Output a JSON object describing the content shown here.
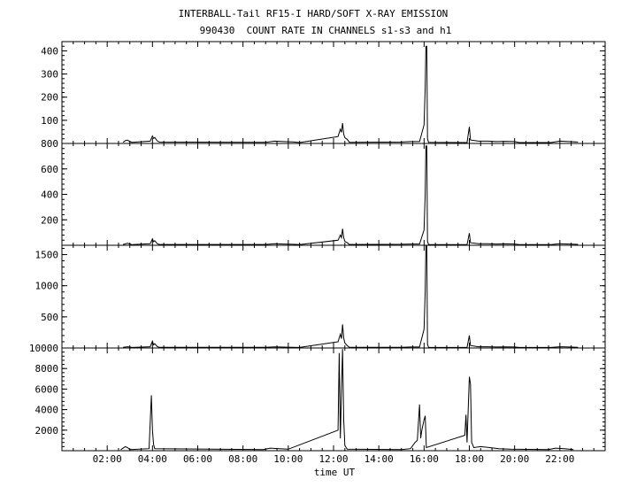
{
  "header": {
    "line1": "INTERBALL-Tail RF15-I HARD/SOFT X-RAY EMISSION",
    "line2": "990430  COUNT RATE IN CHANNELS s1-s3 and h1"
  },
  "chart_data": {
    "type": "line",
    "title": "INTERBALL-Tail RF15-I HARD/SOFT X-RAY EMISSION",
    "subtitle": "990430  COUNT RATE IN CHANNELS s1-s3 and h1",
    "xlabel": "time UT",
    "xlim": [
      0.0,
      24.0
    ],
    "x_ticks": [
      2,
      4,
      6,
      8,
      10,
      12,
      14,
      16,
      18,
      20,
      22
    ],
    "x_tick_labels": [
      "02:00",
      "04:00",
      "06:00",
      "08:00",
      "10:00",
      "12:00",
      "14:00",
      "16:00",
      "18:00",
      "20:00",
      "22:00"
    ],
    "panels": [
      {
        "ylim": [
          0,
          440
        ],
        "y_ticks": [
          100,
          200,
          300,
          400
        ],
        "y_tick_labels": [
          "100",
          "200",
          "300",
          "400"
        ],
        "points": [
          [
            2.7,
            5
          ],
          [
            2.8,
            12
          ],
          [
            2.9,
            14
          ],
          [
            3.0,
            8
          ],
          [
            3.1,
            5
          ],
          [
            3.9,
            10
          ],
          [
            4.0,
            32
          ],
          [
            4.05,
            22
          ],
          [
            4.1,
            26
          ],
          [
            4.2,
            12
          ],
          [
            4.3,
            6
          ],
          [
            9.0,
            5
          ],
          [
            9.4,
            10
          ],
          [
            9.8,
            8
          ],
          [
            10.2,
            7
          ],
          [
            10.5,
            4
          ],
          [
            12.2,
            30
          ],
          [
            12.3,
            62
          ],
          [
            12.35,
            48
          ],
          [
            12.4,
            88
          ],
          [
            12.45,
            40
          ],
          [
            12.5,
            25
          ],
          [
            12.6,
            18
          ],
          [
            12.7,
            5
          ],
          [
            15.0,
            6
          ],
          [
            15.4,
            8
          ],
          [
            15.8,
            8
          ],
          [
            16.0,
            80
          ],
          [
            16.05,
            240
          ],
          [
            16.08,
            420
          ],
          [
            16.12,
            420
          ],
          [
            16.15,
            20
          ],
          [
            16.2,
            5
          ],
          [
            17.9,
            4
          ],
          [
            18.0,
            72
          ],
          [
            18.05,
            15
          ],
          [
            18.4,
            10
          ],
          [
            18.8,
            10
          ],
          [
            19.2,
            8
          ],
          [
            19.6,
            9
          ],
          [
            20.0,
            8
          ],
          [
            20.2,
            4
          ],
          [
            21.6,
            4
          ],
          [
            22.0,
            10
          ],
          [
            22.4,
            8
          ],
          [
            22.8,
            6
          ]
        ]
      },
      {
        "ylim": [
          0,
          800
        ],
        "y_ticks": [
          200,
          400,
          600,
          800
        ],
        "y_tick_labels": [
          "200",
          "400",
          "600",
          "800"
        ],
        "points": [
          [
            2.7,
            6
          ],
          [
            2.9,
            15
          ],
          [
            3.0,
            10
          ],
          [
            3.1,
            5
          ],
          [
            3.9,
            12
          ],
          [
            4.0,
            50
          ],
          [
            4.05,
            28
          ],
          [
            4.1,
            36
          ],
          [
            4.2,
            14
          ],
          [
            4.3,
            6
          ],
          [
            9.0,
            6
          ],
          [
            9.4,
            12
          ],
          [
            9.8,
            10
          ],
          [
            10.2,
            8
          ],
          [
            10.5,
            5
          ],
          [
            12.2,
            40
          ],
          [
            12.3,
            80
          ],
          [
            12.35,
            60
          ],
          [
            12.4,
            130
          ],
          [
            12.45,
            60
          ],
          [
            12.5,
            30
          ],
          [
            12.6,
            20
          ],
          [
            12.7,
            6
          ],
          [
            15.0,
            8
          ],
          [
            15.4,
            10
          ],
          [
            15.8,
            10
          ],
          [
            16.0,
            120
          ],
          [
            16.05,
            400
          ],
          [
            16.08,
            780
          ],
          [
            16.12,
            780
          ],
          [
            16.15,
            30
          ],
          [
            16.2,
            6
          ],
          [
            17.9,
            5
          ],
          [
            18.0,
            95
          ],
          [
            18.05,
            20
          ],
          [
            18.4,
            12
          ],
          [
            18.8,
            12
          ],
          [
            19.2,
            10
          ],
          [
            19.6,
            11
          ],
          [
            20.0,
            10
          ],
          [
            20.2,
            5
          ],
          [
            21.6,
            5
          ],
          [
            22.0,
            12
          ],
          [
            22.4,
            10
          ],
          [
            22.8,
            7
          ]
        ]
      },
      {
        "ylim": [
          0,
          1650
        ],
        "y_ticks": [
          500,
          1000,
          1500
        ],
        "y_tick_labels": [
          "500",
          "1000",
          "1500"
        ],
        "points": [
          [
            2.7,
            10
          ],
          [
            2.9,
            20
          ],
          [
            3.0,
            14
          ],
          [
            3.1,
            8
          ],
          [
            3.9,
            20
          ],
          [
            4.0,
            110
          ],
          [
            4.05,
            50
          ],
          [
            4.1,
            70
          ],
          [
            4.2,
            25
          ],
          [
            4.3,
            10
          ],
          [
            9.0,
            10
          ],
          [
            9.4,
            18
          ],
          [
            9.8,
            14
          ],
          [
            10.2,
            12
          ],
          [
            10.5,
            8
          ],
          [
            12.2,
            100
          ],
          [
            12.3,
            220
          ],
          [
            12.35,
            150
          ],
          [
            12.4,
            380
          ],
          [
            12.45,
            160
          ],
          [
            12.5,
            80
          ],
          [
            12.6,
            40
          ],
          [
            12.7,
            10
          ],
          [
            15.0,
            12
          ],
          [
            15.4,
            16
          ],
          [
            15.8,
            16
          ],
          [
            16.0,
            300
          ],
          [
            16.05,
            900
          ],
          [
            16.08,
            1640
          ],
          [
            16.12,
            1640
          ],
          [
            16.15,
            60
          ],
          [
            16.2,
            10
          ],
          [
            17.9,
            8
          ],
          [
            18.0,
            200
          ],
          [
            18.05,
            40
          ],
          [
            18.4,
            20
          ],
          [
            18.8,
            20
          ],
          [
            19.2,
            16
          ],
          [
            19.6,
            18
          ],
          [
            20.0,
            16
          ],
          [
            20.2,
            8
          ],
          [
            21.6,
            8
          ],
          [
            22.0,
            20
          ],
          [
            22.4,
            16
          ],
          [
            22.8,
            12
          ]
        ]
      },
      {
        "ylim": [
          0,
          10000
        ],
        "y_ticks": [
          2000,
          4000,
          6000,
          8000,
          10000
        ],
        "y_tick_labels": [
          "2000",
          "4000",
          "6000",
          "8000",
          "10000"
        ],
        "points": [
          [
            2.6,
            100
          ],
          [
            2.8,
            400
          ],
          [
            2.9,
            300
          ],
          [
            3.0,
            100
          ],
          [
            3.85,
            200
          ],
          [
            3.95,
            5400
          ],
          [
            4.0,
            2000
          ],
          [
            4.05,
            600
          ],
          [
            4.1,
            200
          ],
          [
            8.9,
            100
          ],
          [
            9.2,
            250
          ],
          [
            9.6,
            200
          ],
          [
            10.0,
            150
          ],
          [
            12.2,
            2000
          ],
          [
            12.25,
            9500
          ],
          [
            12.3,
            1200
          ],
          [
            12.35,
            6000
          ],
          [
            12.4,
            9900
          ],
          [
            12.45,
            3000
          ],
          [
            12.5,
            500
          ],
          [
            12.6,
            150
          ],
          [
            15.0,
            100
          ],
          [
            15.4,
            200
          ],
          [
            15.6,
            800
          ],
          [
            15.7,
            1000
          ],
          [
            15.8,
            4500
          ],
          [
            15.85,
            1200
          ],
          [
            15.9,
            2000
          ],
          [
            16.0,
            3000
          ],
          [
            16.05,
            3400
          ],
          [
            16.1,
            300
          ],
          [
            17.8,
            1500
          ],
          [
            17.85,
            3500
          ],
          [
            17.9,
            800
          ],
          [
            18.0,
            7200
          ],
          [
            18.05,
            6500
          ],
          [
            18.1,
            800
          ],
          [
            18.2,
            300
          ],
          [
            18.5,
            400
          ],
          [
            18.9,
            300
          ],
          [
            19.3,
            200
          ],
          [
            19.8,
            150
          ],
          [
            21.5,
            100
          ],
          [
            21.8,
            250
          ],
          [
            22.2,
            200
          ],
          [
            22.6,
            100
          ]
        ]
      }
    ]
  }
}
